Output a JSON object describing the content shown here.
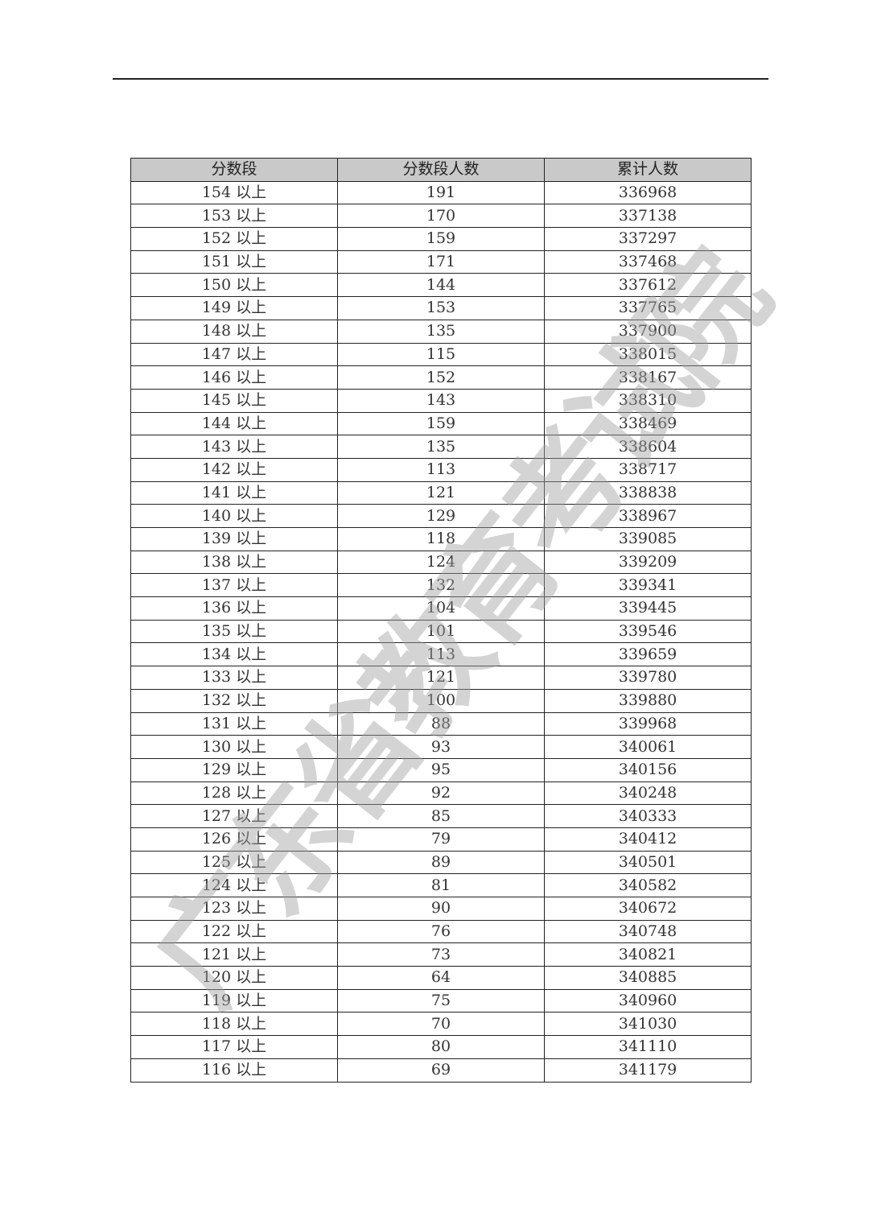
{
  "table": {
    "headers": [
      "分数段",
      "分数段人数",
      "累计人数"
    ],
    "suffix": "以上",
    "rows": [
      [
        "154",
        "191",
        "336968"
      ],
      [
        "153",
        "170",
        "337138"
      ],
      [
        "152",
        "159",
        "337297"
      ],
      [
        "151",
        "171",
        "337468"
      ],
      [
        "150",
        "144",
        "337612"
      ],
      [
        "149",
        "153",
        "337765"
      ],
      [
        "148",
        "135",
        "337900"
      ],
      [
        "147",
        "115",
        "338015"
      ],
      [
        "146",
        "152",
        "338167"
      ],
      [
        "145",
        "143",
        "338310"
      ],
      [
        "144",
        "159",
        "338469"
      ],
      [
        "143",
        "135",
        "338604"
      ],
      [
        "142",
        "113",
        "338717"
      ],
      [
        "141",
        "121",
        "338838"
      ],
      [
        "140",
        "129",
        "338967"
      ],
      [
        "139",
        "118",
        "339085"
      ],
      [
        "138",
        "124",
        "339209"
      ],
      [
        "137",
        "132",
        "339341"
      ],
      [
        "136",
        "104",
        "339445"
      ],
      [
        "135",
        "101",
        "339546"
      ],
      [
        "134",
        "113",
        "339659"
      ],
      [
        "133",
        "121",
        "339780"
      ],
      [
        "132",
        "100",
        "339880"
      ],
      [
        "131",
        "88",
        "339968"
      ],
      [
        "130",
        "93",
        "340061"
      ],
      [
        "129",
        "95",
        "340156"
      ],
      [
        "128",
        "92",
        "340248"
      ],
      [
        "127",
        "85",
        "340333"
      ],
      [
        "126",
        "79",
        "340412"
      ],
      [
        "125",
        "89",
        "340501"
      ],
      [
        "124",
        "81",
        "340582"
      ],
      [
        "123",
        "90",
        "340672"
      ],
      [
        "122",
        "76",
        "340748"
      ],
      [
        "121",
        "73",
        "340821"
      ],
      [
        "120",
        "64",
        "340885"
      ],
      [
        "119",
        "75",
        "340960"
      ],
      [
        "118",
        "70",
        "341030"
      ],
      [
        "117",
        "80",
        "341110"
      ],
      [
        "116",
        "69",
        "341179"
      ]
    ]
  },
  "watermark": "广东省教育考试院",
  "colors": {
    "header_bg": "#c9c9c9",
    "watermark": "#a0a0a0"
  }
}
